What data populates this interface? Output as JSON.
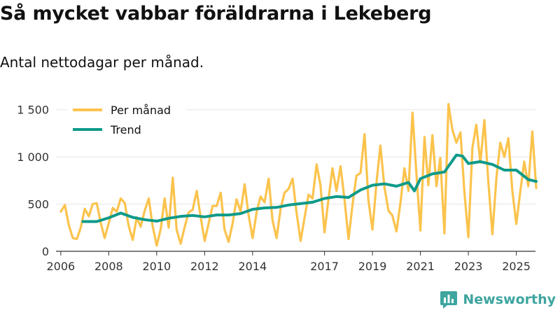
{
  "header": {
    "title": "Så mycket vabbar föräldrarna i Lekeberg",
    "subtitle": "Antal nettodagar per månad."
  },
  "footer": {
    "brand": "Newsworthy"
  },
  "colors": {
    "monthly": "#fbc34d",
    "trend": "#0e9a8a",
    "brand": "#3ea5a0",
    "axis": "#333333",
    "grid": "#e5e5e5"
  },
  "chart_data": {
    "type": "line",
    "title": "Så mycket vabbar föräldrarna i Lekeberg",
    "subtitle": "Antal nettodagar per månad.",
    "xlabel": "",
    "ylabel": "",
    "xlim": [
      2005.8,
      2025.8
    ],
    "ylim": [
      0,
      1550
    ],
    "yticks": [
      0,
      500,
      1000,
      1500
    ],
    "ytick_labels": [
      "0",
      "500",
      "1 000",
      "1 500"
    ],
    "xticks": [
      2006,
      2008,
      2010,
      2012,
      2014,
      2017,
      2019,
      2021,
      2023,
      2025
    ],
    "xtick_labels": [
      "2006",
      "2008",
      "2010",
      "2012",
      "2014",
      "2017",
      "2019",
      "2021",
      "2023",
      "2025"
    ],
    "legend": {
      "position": "top-left",
      "entries": [
        "Per månad",
        "Trend"
      ]
    },
    "series": [
      {
        "name": "Per månad",
        "color": "#fbc34d",
        "points": [
          [
            2006.0,
            420
          ],
          [
            2006.17,
            490
          ],
          [
            2006.33,
            280
          ],
          [
            2006.5,
            140
          ],
          [
            2006.67,
            130
          ],
          [
            2006.83,
            250
          ],
          [
            2007.0,
            450
          ],
          [
            2007.17,
            370
          ],
          [
            2007.33,
            500
          ],
          [
            2007.5,
            510
          ],
          [
            2007.67,
            300
          ],
          [
            2007.83,
            140
          ],
          [
            2008.0,
            300
          ],
          [
            2008.17,
            460
          ],
          [
            2008.33,
            420
          ],
          [
            2008.5,
            560
          ],
          [
            2008.67,
            510
          ],
          [
            2008.83,
            270
          ],
          [
            2009.0,
            120
          ],
          [
            2009.17,
            360
          ],
          [
            2009.33,
            260
          ],
          [
            2009.5,
            430
          ],
          [
            2009.67,
            560
          ],
          [
            2009.83,
            270
          ],
          [
            2010.0,
            60
          ],
          [
            2010.17,
            240
          ],
          [
            2010.33,
            560
          ],
          [
            2010.5,
            250
          ],
          [
            2010.67,
            780
          ],
          [
            2010.83,
            230
          ],
          [
            2011.0,
            80
          ],
          [
            2011.17,
            260
          ],
          [
            2011.33,
            410
          ],
          [
            2011.5,
            440
          ],
          [
            2011.67,
            640
          ],
          [
            2011.83,
            370
          ],
          [
            2012.0,
            110
          ],
          [
            2012.17,
            300
          ],
          [
            2012.33,
            480
          ],
          [
            2012.5,
            480
          ],
          [
            2012.67,
            620
          ],
          [
            2012.83,
            230
          ],
          [
            2013.0,
            100
          ],
          [
            2013.17,
            300
          ],
          [
            2013.33,
            550
          ],
          [
            2013.5,
            420
          ],
          [
            2013.67,
            710
          ],
          [
            2013.83,
            390
          ],
          [
            2014.0,
            140
          ],
          [
            2014.17,
            420
          ],
          [
            2014.33,
            580
          ],
          [
            2014.5,
            520
          ],
          [
            2014.67,
            770
          ],
          [
            2014.83,
            330
          ],
          [
            2015.0,
            140
          ],
          [
            2015.17,
            450
          ],
          [
            2015.33,
            620
          ],
          [
            2015.5,
            660
          ],
          [
            2015.67,
            770
          ],
          [
            2015.83,
            420
          ],
          [
            2016.0,
            110
          ],
          [
            2016.17,
            360
          ],
          [
            2016.33,
            600
          ],
          [
            2016.5,
            560
          ],
          [
            2016.67,
            920
          ],
          [
            2016.83,
            700
          ],
          [
            2017.0,
            200
          ],
          [
            2017.17,
            560
          ],
          [
            2017.33,
            880
          ],
          [
            2017.5,
            640
          ],
          [
            2017.67,
            900
          ],
          [
            2017.83,
            560
          ],
          [
            2018.0,
            130
          ],
          [
            2018.17,
            500
          ],
          [
            2018.33,
            800
          ],
          [
            2018.5,
            830
          ],
          [
            2018.67,
            1240
          ],
          [
            2018.83,
            540
          ],
          [
            2019.0,
            230
          ],
          [
            2019.17,
            730
          ],
          [
            2019.33,
            1120
          ],
          [
            2019.5,
            680
          ],
          [
            2019.67,
            430
          ],
          [
            2019.83,
            380
          ],
          [
            2020.0,
            210
          ],
          [
            2020.17,
            520
          ],
          [
            2020.33,
            880
          ],
          [
            2020.5,
            640
          ],
          [
            2020.67,
            1470
          ],
          [
            2020.83,
            830
          ],
          [
            2021.0,
            220
          ],
          [
            2021.17,
            1210
          ],
          [
            2021.33,
            700
          ],
          [
            2021.5,
            1230
          ],
          [
            2021.67,
            690
          ],
          [
            2021.83,
            990
          ],
          [
            2022.0,
            190
          ],
          [
            2022.17,
            1560
          ],
          [
            2022.33,
            1290
          ],
          [
            2022.5,
            1150
          ],
          [
            2022.67,
            1260
          ],
          [
            2022.83,
            640
          ],
          [
            2023.0,
            150
          ],
          [
            2023.17,
            1100
          ],
          [
            2023.33,
            1340
          ],
          [
            2023.5,
            940
          ],
          [
            2023.67,
            1390
          ],
          [
            2023.83,
            750
          ],
          [
            2024.0,
            180
          ],
          [
            2024.17,
            780
          ],
          [
            2024.33,
            1150
          ],
          [
            2024.5,
            1000
          ],
          [
            2024.67,
            1200
          ],
          [
            2024.83,
            650
          ],
          [
            2025.0,
            290
          ],
          [
            2025.17,
            640
          ],
          [
            2025.33,
            950
          ],
          [
            2025.5,
            690
          ],
          [
            2025.67,
            1270
          ],
          [
            2025.83,
            670
          ]
        ]
      },
      {
        "name": "Trend",
        "color": "#0e9a8a",
        "points": [
          [
            2006.92,
            315
          ],
          [
            2007.5,
            315
          ],
          [
            2008.0,
            355
          ],
          [
            2008.5,
            405
          ],
          [
            2009.0,
            360
          ],
          [
            2009.5,
            335
          ],
          [
            2010.0,
            320
          ],
          [
            2010.5,
            350
          ],
          [
            2011.0,
            370
          ],
          [
            2011.5,
            380
          ],
          [
            2012.0,
            365
          ],
          [
            2012.5,
            385
          ],
          [
            2013.0,
            385
          ],
          [
            2013.5,
            400
          ],
          [
            2014.0,
            445
          ],
          [
            2014.5,
            460
          ],
          [
            2015.0,
            465
          ],
          [
            2015.5,
            490
          ],
          [
            2016.0,
            505
          ],
          [
            2016.5,
            520
          ],
          [
            2017.0,
            560
          ],
          [
            2017.5,
            580
          ],
          [
            2018.0,
            570
          ],
          [
            2018.5,
            650
          ],
          [
            2019.0,
            700
          ],
          [
            2019.5,
            715
          ],
          [
            2020.0,
            690
          ],
          [
            2020.5,
            730
          ],
          [
            2020.75,
            640
          ],
          [
            2021.0,
            770
          ],
          [
            2021.5,
            820
          ],
          [
            2022.0,
            840
          ],
          [
            2022.5,
            1020
          ],
          [
            2022.75,
            1010
          ],
          [
            2023.0,
            930
          ],
          [
            2023.5,
            950
          ],
          [
            2024.0,
            920
          ],
          [
            2024.5,
            860
          ],
          [
            2025.0,
            860
          ],
          [
            2025.5,
            760
          ],
          [
            2025.83,
            740
          ]
        ]
      }
    ]
  }
}
